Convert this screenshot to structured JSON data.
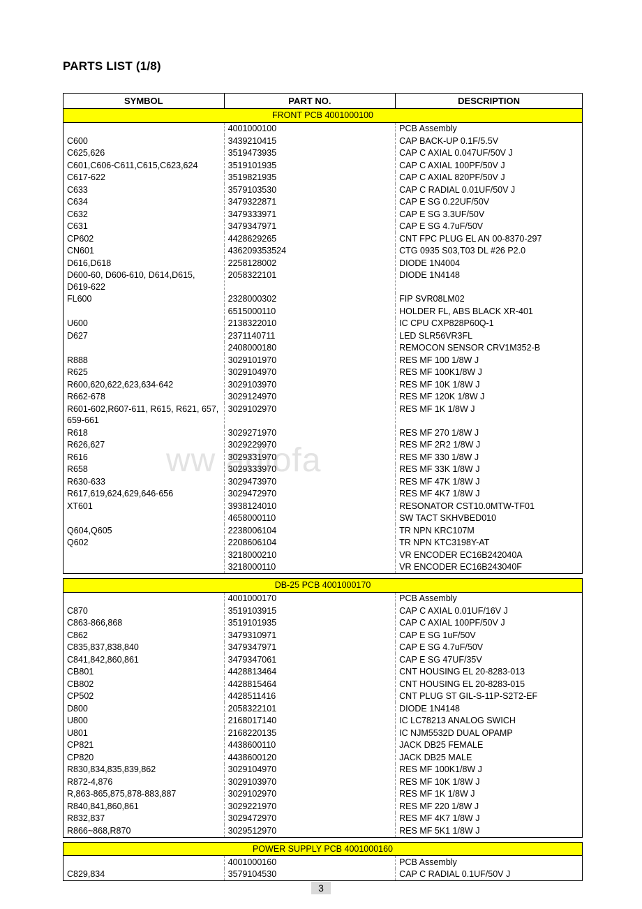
{
  "title": "PARTS LIST (1/8)",
  "watermark": "ww          adiofa",
  "page_number": "3",
  "columns": {
    "symbol": "SYMBOL",
    "partno": "PART NO.",
    "desc": "DESCRIPTION"
  },
  "colors": {
    "highlight": "#ffff00",
    "bg": "#ffffff",
    "border": "#000000",
    "dash": "#999999",
    "pagenum_bg": "#d9d9d9",
    "watermark": "#e3e3e3"
  },
  "tables": [
    {
      "section": "FRONT PCB 4001000100",
      "rows": [
        {
          "s": "",
          "p": "4001000100",
          "d": "PCB Assembly"
        },
        {
          "s": "C600",
          "p": "3439210415",
          "d": "CAP BACK-UP 0.1F/5.5V"
        },
        {
          "s": "C625,626",
          "p": "3519473935",
          "d": "CAP C AXIAL 0.047UF/50V J"
        },
        {
          "s": "C601,C606-C611,C615,C623,624",
          "p": "3519101935",
          "d": "CAP C AXIAL 100PF/50V J"
        },
        {
          "s": "C617-622",
          "p": "3519821935",
          "d": "CAP C AXIAL 820PF/50V J"
        },
        {
          "s": "C633",
          "p": "3579103530",
          "d": "CAP C RADIAL 0.01UF/50V J"
        },
        {
          "s": "C634",
          "p": "3479322871",
          "d": "CAP E SG 0.22UF/50V"
        },
        {
          "s": "C632",
          "p": "3479333971",
          "d": "CAP E SG 3.3UF/50V"
        },
        {
          "s": "C631",
          "p": "3479347971",
          "d": "CAP E SG 4.7uF/50V"
        },
        {
          "s": "CP602",
          "p": "4428629265",
          "d": "CNT FPC PLUG EL AN 00-8370-297"
        },
        {
          "s": "CN601",
          "p": "436209353524",
          "d": "CTG 0935 S03,T03 DL #26 P2.0"
        },
        {
          "s": "D616,D618",
          "p": "2258128002",
          "d": "DIODE 1N4004"
        },
        {
          "s": "D600-60, D606-610, D614,D615, D619-622",
          "p": "2058322101",
          "d": "DIODE 1N4148"
        },
        {
          "s": "FL600",
          "p": "2328000302",
          "d": "FIP SVR08LM02"
        },
        {
          "s": "",
          "p": "6515000110",
          "d": "HOLDER FL, ABS BLACK XR-401"
        },
        {
          "s": "U600",
          "p": "2138322010",
          "d": "IC CPU CXP828P60Q-1"
        },
        {
          "s": "D627",
          "p": "2371140711",
          "d": "LED SLR56VR3FL"
        },
        {
          "s": "",
          "p": "2408000180",
          "d": "REMOCON SENSOR CRV1M352-B"
        },
        {
          "s": "R888",
          "p": "3029101970",
          "d": "RES MF 100 1/8W J"
        },
        {
          "s": "R625",
          "p": "3029104970",
          "d": "RES MF 100K1/8W J"
        },
        {
          "s": "R600,620,622,623,634-642",
          "p": "3029103970",
          "d": "RES MF 10K 1/8W J"
        },
        {
          "s": "R662-678",
          "p": "3029124970",
          "d": "RES MF 120K 1/8W J"
        },
        {
          "s": "R601-602,R607-611, R615, R621, 657, 659-661",
          "p": "3029102970",
          "d": "RES MF 1K 1/8W J"
        },
        {
          "s": "R618",
          "p": "3029271970",
          "d": "RES MF 270 1/8W J"
        },
        {
          "s": "R626,627",
          "p": "3029229970",
          "d": "RES MF 2R2 1/8W J"
        },
        {
          "s": "R616",
          "p": "3029331970",
          "d": "RES MF 330 1/8W J"
        },
        {
          "s": "R658",
          "p": "3029333970",
          "d": "RES MF 33K 1/8W J"
        },
        {
          "s": "R630-633",
          "p": "3029473970",
          "d": "RES MF 47K 1/8W J"
        },
        {
          "s": "R617,619,624,629,646-656",
          "p": "3029472970",
          "d": "RES MF 4K7 1/8W J"
        },
        {
          "s": "XT601",
          "p": "3938124010",
          "d": "RESONATOR CST10.0MTW-TF01"
        },
        {
          "s": "",
          "p": "4658000110",
          "d": "SW TACT SKHVBED010"
        },
        {
          "s": "Q604,Q605",
          "p": "2238006104",
          "d": "TR NPN KRC107M"
        },
        {
          "s": "Q602",
          "p": "2208606104",
          "d": "TR NPN KTC3198Y-AT"
        },
        {
          "s": "",
          "p": "3218000210",
          "d": "VR ENCODER EC16B242040A"
        },
        {
          "s": "",
          "p": "3218000110",
          "d": "VR ENCODER EC16B243040F"
        }
      ]
    },
    {
      "section": "DB-25 PCB 4001000170",
      "rows": [
        {
          "s": "",
          "p": "4001000170",
          "d": "PCB Assembly"
        },
        {
          "s": "C870",
          "p": "3519103915",
          "d": "CAP C AXIAL 0.01UF/16V J"
        },
        {
          "s": "C863-866,868",
          "p": "3519101935",
          "d": "CAP C AXIAL 100PF/50V J"
        },
        {
          "s": "C862",
          "p": "3479310971",
          "d": "CAP E SG 1uF/50V"
        },
        {
          "s": "C835,837,838,840",
          "p": "3479347971",
          "d": "CAP E SG 4.7uF/50V"
        },
        {
          "s": "C841,842,860,861",
          "p": "3479347061",
          "d": "CAP E SG 47UF/35V"
        },
        {
          "s": "CB801",
          "p": "4428813464",
          "d": "CNT HOUSING EL 20-8283-013"
        },
        {
          "s": "CB802",
          "p": "4428815464",
          "d": "CNT HOUSING EL 20-8283-015"
        },
        {
          "s": "CP502",
          "p": "4428511416",
          "d": "CNT PLUG ST GIL-S-11P-S2T2-EF"
        },
        {
          "s": "D800",
          "p": "2058322101",
          "d": "DIODE 1N4148"
        },
        {
          "s": "U800",
          "p": "2168017140",
          "d": "IC LC78213 ANALOG SWICH"
        },
        {
          "s": "U801",
          "p": "2168220135",
          "d": "IC NJM5532D  DUAL OPAMP"
        },
        {
          "s": "CP821",
          "p": "4438600110",
          "d": "JACK DB25 FEMALE"
        },
        {
          "s": "CP820",
          "p": "4438600120",
          "d": "JACK DB25 MALE"
        },
        {
          "s": "R830,834,835,839,862",
          "p": "3029104970",
          "d": "RES MF 100K1/8W J"
        },
        {
          "s": "R872-4,876",
          "p": "3029103970",
          "d": "RES MF 10K 1/8W J"
        },
        {
          "s": "R,863-865,875,878-883,887",
          "p": "3029102970",
          "d": "RES MF 1K 1/8W J"
        },
        {
          "s": "R840,841,860,861",
          "p": "3029221970",
          "d": "RES MF 220 1/8W J"
        },
        {
          "s": "R832,837",
          "p": "3029472970",
          "d": "RES MF 4K7 1/8W J"
        },
        {
          "s": "R866~868,R870",
          "p": "3029512970",
          "d": "RES MF 5K1 1/8W J"
        }
      ]
    },
    {
      "section": "POWER SUPPLY PCB 4001000160",
      "rows": [
        {
          "s": "",
          "p": "4001000160",
          "d": "PCB Assembly"
        },
        {
          "s": "C829,834",
          "p": "3579104530",
          "d": "CAP C RADIAL 0.1UF/50V J"
        }
      ]
    }
  ]
}
